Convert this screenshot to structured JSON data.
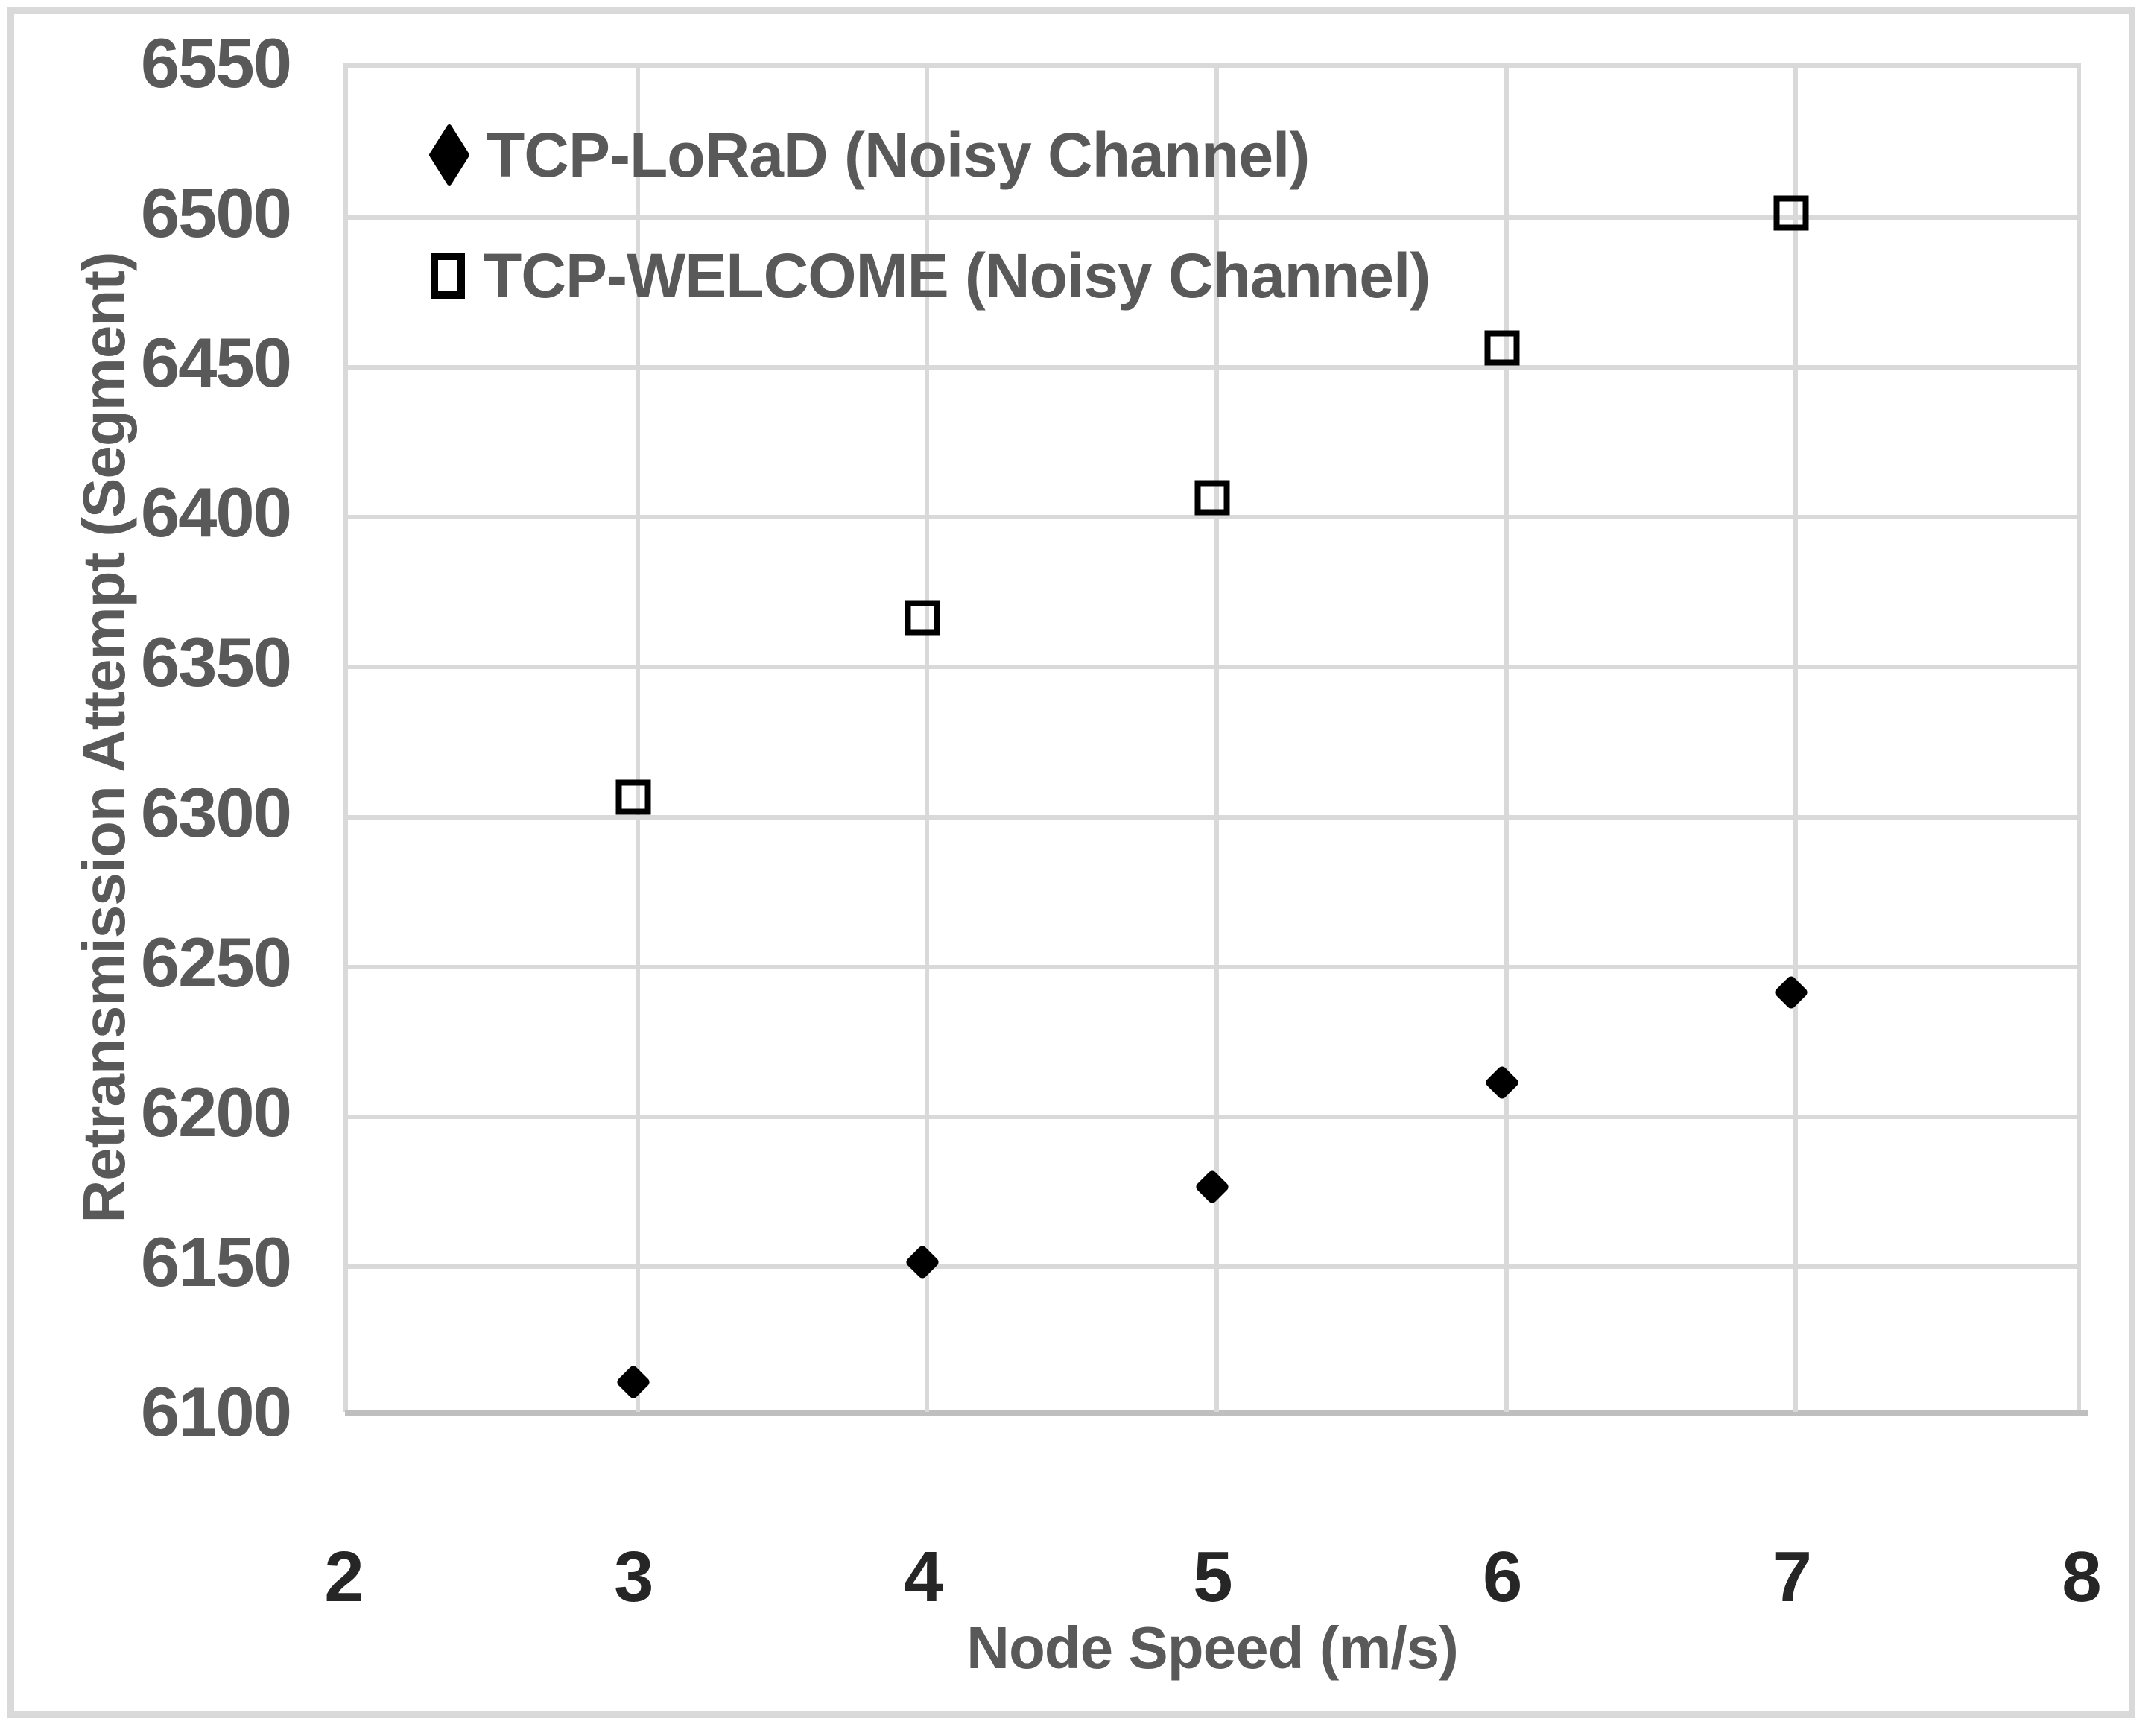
{
  "figure": {
    "background": "#ffffff",
    "border_color": "#d9d9d9"
  },
  "colors": {
    "gridline": "#d9d9d9",
    "axis_line": "#bfbfbf",
    "y_tick_text": "#595959",
    "x_tick_text": "#262626",
    "axis_title_text": "#595959",
    "legend_text": "#595959",
    "marker": "#000000"
  },
  "chart_data": {
    "type": "scatter",
    "title": "",
    "xlabel": "Node Speed (m/s)",
    "ylabel": "Retransmission Attempt (Segment)",
    "xlim": [
      2,
      8
    ],
    "ylim": [
      6100,
      6550
    ],
    "x_ticks": [
      2,
      3,
      4,
      5,
      6,
      7,
      8
    ],
    "y_ticks": [
      6100,
      6150,
      6200,
      6250,
      6300,
      6350,
      6400,
      6450,
      6500,
      6550
    ],
    "grid": true,
    "legend_position": "top-left-inside",
    "x": [
      3,
      4,
      5,
      6,
      7
    ],
    "series": [
      {
        "name": "TCP-LoRaD (Noisy Channel)",
        "marker": "filled-diamond",
        "color": "#000000",
        "values": [
          6110,
          6150,
          6175,
          6210,
          6240
        ]
      },
      {
        "name": "TCP-WELCOME (Noisy Channel)",
        "marker": "hollow-square",
        "color": "#000000",
        "values": [
          6305,
          6365,
          6405,
          6455,
          6500
        ]
      }
    ]
  }
}
